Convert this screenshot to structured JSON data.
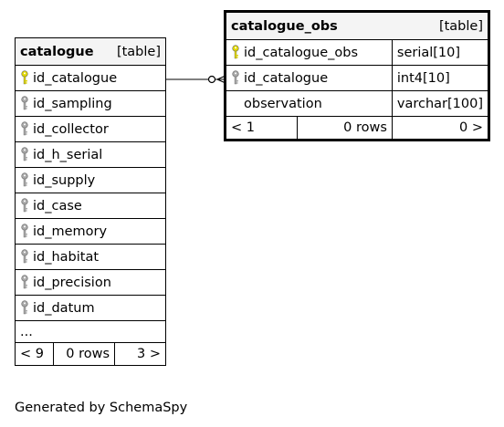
{
  "tables": {
    "catalogue": {
      "name": "catalogue",
      "kind": "[table]",
      "columns": [
        {
          "name": "id_catalogue",
          "key": "primary"
        },
        {
          "name": "id_sampling",
          "key": "foreign"
        },
        {
          "name": "id_collector",
          "key": "foreign"
        },
        {
          "name": "id_h_serial",
          "key": "foreign"
        },
        {
          "name": "id_supply",
          "key": "foreign"
        },
        {
          "name": "id_case",
          "key": "foreign"
        },
        {
          "name": "id_memory",
          "key": "foreign"
        },
        {
          "name": "id_habitat",
          "key": "foreign"
        },
        {
          "name": "id_precision",
          "key": "foreign"
        },
        {
          "name": "id_datum",
          "key": "foreign"
        }
      ],
      "more": "...",
      "footer": {
        "left": "< 9",
        "middle": "0 rows",
        "right": "3 >"
      }
    },
    "catalogue_obs": {
      "name": "catalogue_obs",
      "kind": "[table]",
      "columns": [
        {
          "name": "id_catalogue_obs",
          "type": "serial[10]",
          "key": "primary"
        },
        {
          "name": "id_catalogue",
          "type": "int4[10]",
          "key": "foreign"
        },
        {
          "name": "observation",
          "type": "varchar[100]",
          "key": "none"
        }
      ],
      "footer": {
        "left": "< 1",
        "middle": "0 rows",
        "right": "0 >"
      }
    }
  },
  "colors": {
    "primary_key": "#e2d800",
    "foreign_key": "#a9a9a9",
    "header_bg": "#f4f4f4"
  },
  "footer_text": "Generated by SchemaSpy"
}
